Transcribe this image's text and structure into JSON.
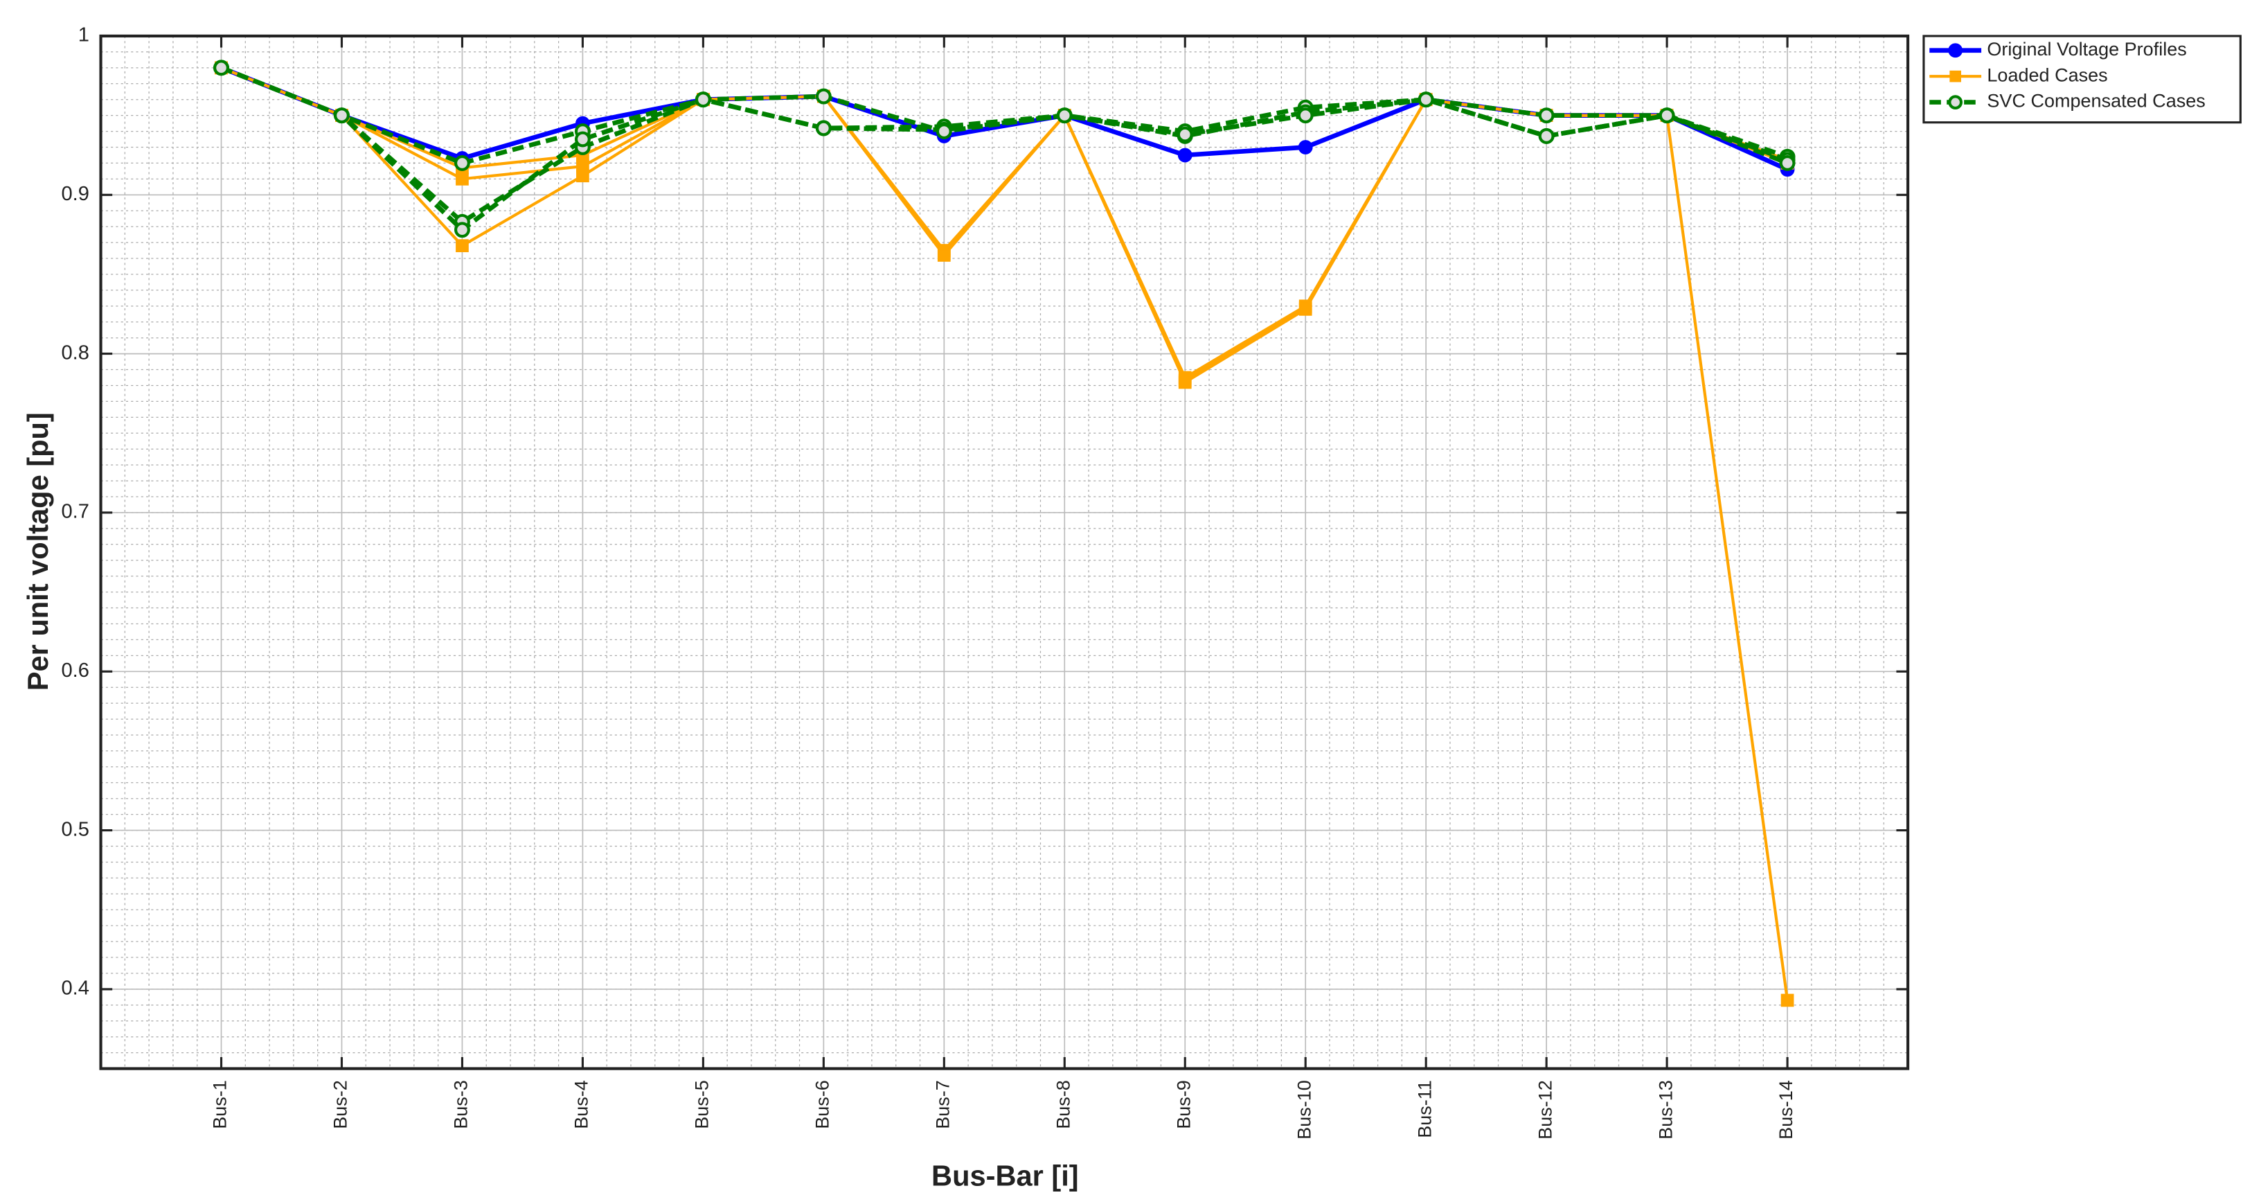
{
  "chart_data": {
    "type": "line",
    "x_label": "Bus-Bar [i]",
    "y_label": "Per unit voltage [pu]",
    "categories": [
      "Bus-1",
      "Bus-2",
      "Bus-3",
      "Bus-4",
      "Bus-5",
      "Bus-6",
      "Bus-7",
      "Bus-8",
      "Bus-9",
      "Bus-10",
      "Bus-11",
      "Bus-12",
      "Bus-13",
      "Bus-14"
    ],
    "ylim": [
      0.35,
      1
    ],
    "yticks": [
      0.4,
      0.5,
      0.6,
      0.7,
      0.8,
      0.9,
      1
    ],
    "grid": true,
    "minor_grid": true,
    "legend": "outside-right",
    "series": [
      {
        "name": "Original Voltage Profiles",
        "color": "#0000ff",
        "marker": "circle",
        "dashed": false,
        "values": [
          0.98,
          0.95,
          0.923,
          0.945,
          0.96,
          0.962,
          0.937,
          0.95,
          0.925,
          0.93,
          0.96,
          0.95,
          0.95,
          0.916
        ]
      },
      {
        "name": "Loaded Cases",
        "color": "#ffa500",
        "marker": "square",
        "dashed": false,
        "values": [
          0.98,
          0.95,
          0.917,
          0.925,
          0.96,
          0.962,
          0.865,
          0.95,
          0.785,
          0.83,
          0.96,
          0.95,
          0.95,
          0.393
        ]
      },
      {
        "color": "#ffa500",
        "marker": "square",
        "dashed": false,
        "values": [
          0.98,
          0.95,
          0.91,
          0.918,
          0.96,
          0.962,
          0.863,
          0.95,
          0.783,
          0.829,
          0.96,
          0.95,
          0.95,
          0.92
        ]
      },
      {
        "color": "#ffa500",
        "marker": "square",
        "dashed": false,
        "values": [
          0.98,
          0.95,
          0.868,
          0.912,
          0.96,
          0.962,
          0.862,
          0.95,
          0.782,
          0.828,
          0.96,
          0.95,
          0.95,
          0.922
        ]
      },
      {
        "name": "SVC Compensated Cases",
        "color": "#008000",
        "marker": "open-circle",
        "dashed": true,
        "values": [
          0.98,
          0.95,
          0.92,
          0.94,
          0.96,
          0.942,
          0.943,
          0.95,
          0.94,
          0.955,
          0.96,
          0.937,
          0.95,
          0.924
        ]
      },
      {
        "color": "#008000",
        "marker": "open-circle",
        "dashed": true,
        "values": [
          0.98,
          0.95,
          0.883,
          0.93,
          0.96,
          0.942,
          0.941,
          0.95,
          0.937,
          0.952,
          0.96,
          0.937,
          0.95,
          0.922
        ]
      },
      {
        "color": "#008000",
        "marker": "open-circle",
        "dashed": true,
        "values": [
          0.98,
          0.95,
          0.878,
          0.935,
          0.96,
          0.962,
          0.94,
          0.95,
          0.938,
          0.95,
          0.96,
          0.95,
          0.95,
          0.92
        ]
      }
    ]
  }
}
